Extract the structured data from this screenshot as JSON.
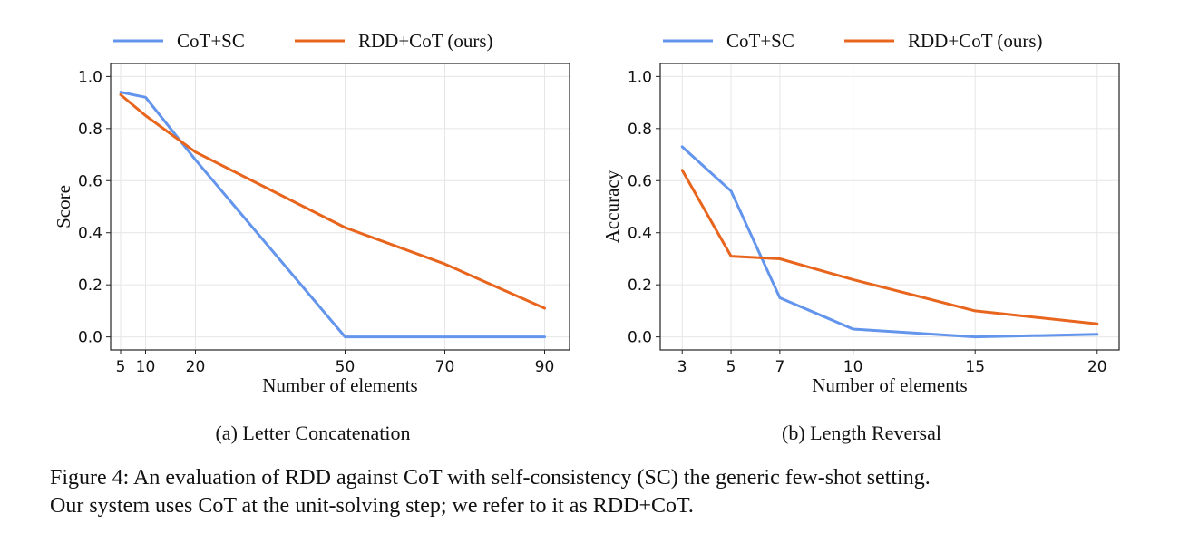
{
  "chart_data": [
    {
      "type": "line",
      "xlabel": "Number of elements",
      "ylabel": "Score",
      "x": [
        5,
        10,
        20,
        50,
        70,
        90
      ],
      "xticks": [
        "5",
        "10",
        "20",
        "50",
        "70",
        "90"
      ],
      "xlim": [
        3,
        95
      ],
      "ylim": [
        -0.05,
        1.05
      ],
      "yticks": [
        "0.0",
        "0.2",
        "0.4",
        "0.6",
        "0.8",
        "1.0"
      ],
      "grid": true,
      "legend_position": "top, outside",
      "series": [
        {
          "name": "CoT+SC",
          "color": "#6495ed",
          "values": [
            0.94,
            0.92,
            0.68,
            0.0,
            0.0,
            0.0
          ]
        },
        {
          "name": "RDD+CoT (ours)",
          "color": "#e8651e",
          "values": [
            0.93,
            0.85,
            0.71,
            0.42,
            0.28,
            0.11
          ]
        }
      ],
      "subcaption": "(a) Letter Concatenation"
    },
    {
      "type": "line",
      "xlabel": "Number of elements",
      "ylabel": "Accuracy",
      "x": [
        3,
        5,
        7,
        10,
        15,
        20
      ],
      "xticks": [
        "3",
        "5",
        "7",
        "10",
        "15",
        "20"
      ],
      "xlim": [
        2.1,
        20.9
      ],
      "ylim": [
        -0.05,
        1.05
      ],
      "yticks": [
        "0.0",
        "0.2",
        "0.4",
        "0.6",
        "0.8",
        "1.0"
      ],
      "grid": true,
      "legend_position": "top, outside",
      "series": [
        {
          "name": "CoT+SC",
          "color": "#6495ed",
          "values": [
            0.73,
            0.56,
            0.15,
            0.03,
            0.0,
            0.01
          ]
        },
        {
          "name": "RDD+CoT (ours)",
          "color": "#e8651e",
          "values": [
            0.64,
            0.31,
            0.3,
            0.22,
            0.1,
            0.05
          ]
        }
      ],
      "subcaption": "(b) Length Reversal"
    }
  ],
  "caption": {
    "line1": "Figure 4: An evaluation of RDD against CoT with self-consistency (SC) the generic few-shot setting.",
    "line2": "Our system uses CoT at the unit-solving step; we refer to it as RDD+CoT."
  }
}
